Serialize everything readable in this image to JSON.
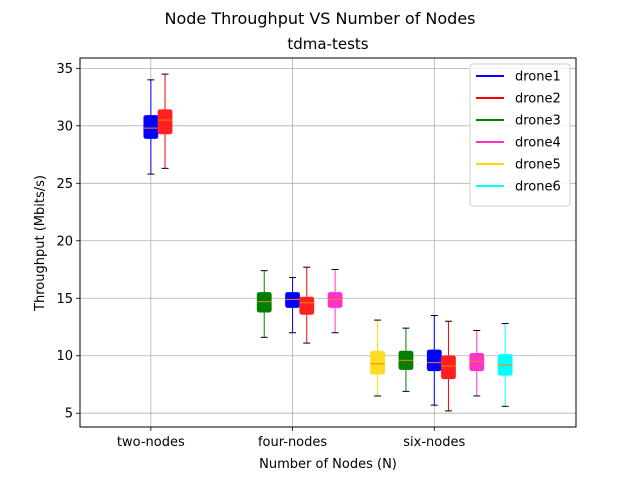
{
  "chart_data": {
    "type": "box",
    "title": "Node Throughput VS Number of Nodes",
    "subtitle": "tdma-tests",
    "xlabel": "Number of Nodes (N)",
    "ylabel": "Throughput (Mbits/s)",
    "ylim": [
      3.8,
      35.9
    ],
    "yticks": [
      5,
      10,
      15,
      20,
      25,
      30,
      35
    ],
    "grid": true,
    "legend_position": "top-right",
    "categories": [
      "two-nodes",
      "four-nodes",
      "six-nodes"
    ],
    "series": [
      {
        "name": "drone1",
        "color": "#0000ff",
        "line_color": "#0000ff",
        "median_color": "#ff7f0e"
      },
      {
        "name": "drone2",
        "color": "#ff2020",
        "line_color": "#ff0000",
        "median_color": "#ff7f0e"
      },
      {
        "name": "drone3",
        "color": "#007f00",
        "line_color": "#008000",
        "median_color": "#ff7f0e"
      },
      {
        "name": "drone4",
        "color": "#ff33c8",
        "line_color": "#ff33cc",
        "median_color": "#ff7f0e"
      },
      {
        "name": "drone5",
        "color": "#ffdd22",
        "line_color": "#ffd700",
        "median_color": "#ff7f0e"
      },
      {
        "name": "drone6",
        "color": "#00ffff",
        "line_color": "#00ffff",
        "median_color": "#ff7f0e"
      }
    ],
    "boxes": [
      {
        "category": "two-nodes",
        "series": "drone1",
        "x": 0.0,
        "min": 25.8,
        "q1": 28.9,
        "median": 29.8,
        "q3": 30.9,
        "max": 34.0
      },
      {
        "category": "two-nodes",
        "series": "drone2",
        "x": 0.1,
        "min": 26.3,
        "q1": 29.3,
        "median": 30.5,
        "q3": 31.4,
        "max": 34.5
      },
      {
        "category": "four-nodes",
        "series": "drone3",
        "x": 0.8,
        "min": 11.6,
        "q1": 13.8,
        "median": 14.7,
        "q3": 15.5,
        "max": 17.4
      },
      {
        "category": "four-nodes",
        "series": "drone1",
        "x": 1.0,
        "min": 12.0,
        "q1": 14.2,
        "median": 14.9,
        "q3": 15.5,
        "max": 16.8
      },
      {
        "category": "four-nodes",
        "series": "drone2",
        "x": 1.1,
        "min": 11.1,
        "q1": 13.6,
        "median": 14.6,
        "q3": 15.1,
        "max": 17.7
      },
      {
        "category": "four-nodes",
        "series": "drone4",
        "x": 1.3,
        "min": 12.0,
        "q1": 14.2,
        "median": 14.9,
        "q3": 15.5,
        "max": 17.5
      },
      {
        "category": "six-nodes",
        "series": "drone5",
        "x": 1.6,
        "min": 6.5,
        "q1": 8.4,
        "median": 9.3,
        "q3": 10.4,
        "max": 13.1
      },
      {
        "category": "six-nodes",
        "series": "drone3",
        "x": 1.8,
        "min": 6.9,
        "q1": 8.8,
        "median": 9.6,
        "q3": 10.4,
        "max": 12.4
      },
      {
        "category": "six-nodes",
        "series": "drone1",
        "x": 2.0,
        "min": 5.7,
        "q1": 8.7,
        "median": 9.4,
        "q3": 10.5,
        "max": 13.5
      },
      {
        "category": "six-nodes",
        "series": "drone2",
        "x": 2.1,
        "min": 5.2,
        "q1": 8.0,
        "median": 9.1,
        "q3": 10.0,
        "max": 13.0
      },
      {
        "category": "six-nodes",
        "series": "drone4",
        "x": 2.3,
        "min": 6.5,
        "q1": 8.7,
        "median": 9.5,
        "q3": 10.2,
        "max": 12.2
      },
      {
        "category": "six-nodes",
        "series": "drone6",
        "x": 2.5,
        "min": 5.6,
        "q1": 8.3,
        "median": 9.2,
        "q3": 10.1,
        "max": 12.8
      }
    ]
  }
}
